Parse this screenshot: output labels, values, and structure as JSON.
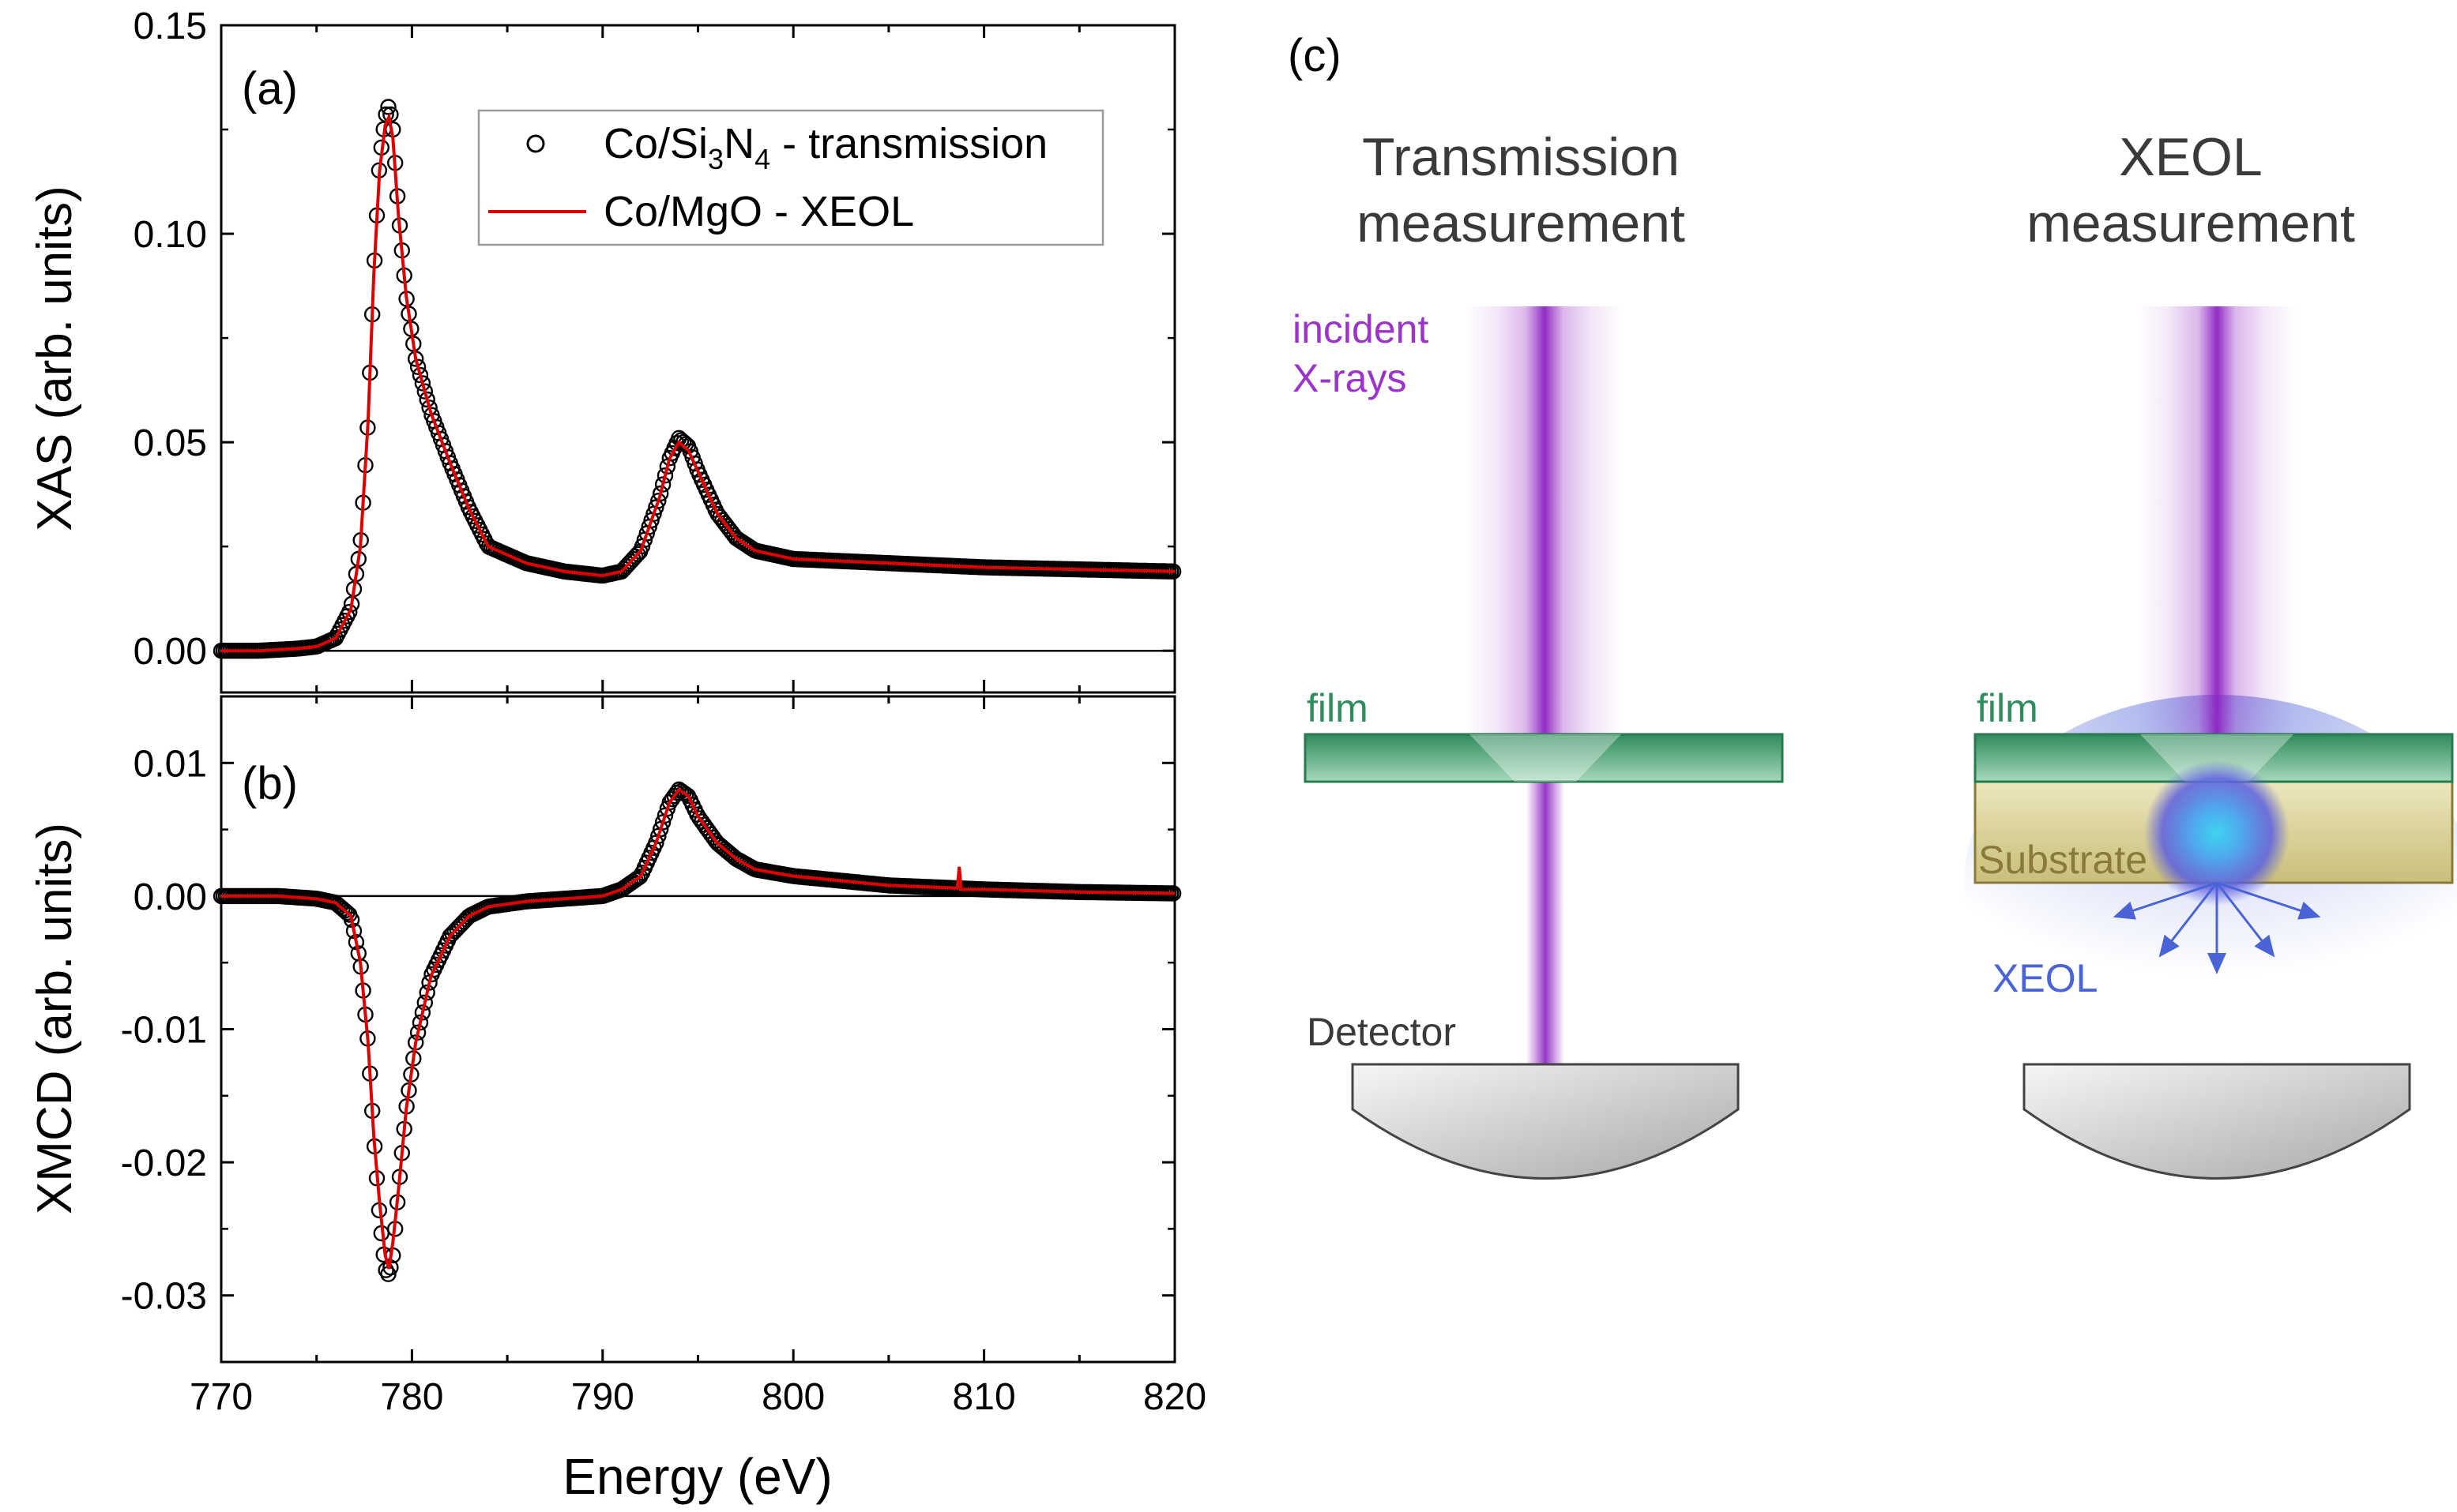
{
  "chart_data": [
    {
      "type": "line",
      "panel": "(a)",
      "ylabel": "XAS (arb. units)",
      "xlim": [
        770,
        820
      ],
      "ylim": [
        -0.01,
        0.15
      ],
      "yticks": [
        "0.00",
        "0.05",
        "0.10",
        "0.15"
      ],
      "legend": {
        "placement": "top-right",
        "entries": [
          {
            "prefix": "Co/Si",
            "sub1": "3",
            "mid": "N",
            "sub2": "4",
            "suffix": " - transmission",
            "style": "open-circle",
            "color": "#000000"
          },
          {
            "label": "Co/MgO - XEOL",
            "style": "line",
            "color": "#dd0000"
          }
        ]
      },
      "series": [
        {
          "name": "Co/Si3N4 - transmission",
          "marker": "open-circle",
          "x": [
            770,
            772,
            774,
            775,
            776,
            776.8,
            777.3,
            777.7,
            778.0,
            778.3,
            778.6,
            778.8,
            779.0,
            779.3,
            779.7,
            780.2,
            781,
            782,
            783,
            784,
            786,
            788,
            790,
            791,
            792,
            793,
            793.5,
            794,
            794.5,
            795,
            796,
            797,
            798,
            800,
            805,
            810,
            815,
            820
          ],
          "y": [
            0.0,
            0.0,
            0.0005,
            0.001,
            0.003,
            0.01,
            0.025,
            0.055,
            0.09,
            0.117,
            0.128,
            0.131,
            0.125,
            0.105,
            0.085,
            0.07,
            0.057,
            0.045,
            0.034,
            0.025,
            0.021,
            0.019,
            0.018,
            0.019,
            0.024,
            0.037,
            0.046,
            0.051,
            0.049,
            0.043,
            0.033,
            0.027,
            0.024,
            0.022,
            0.021,
            0.02,
            0.0195,
            0.019
          ]
        },
        {
          "name": "Co/MgO - XEOL",
          "color": "#dd0000",
          "x": [
            770,
            772,
            774,
            775,
            776,
            776.8,
            777.3,
            777.7,
            778.0,
            778.3,
            778.6,
            778.8,
            779.0,
            779.3,
            779.7,
            780.2,
            781,
            782,
            783,
            784,
            786,
            788,
            790,
            791,
            792,
            793,
            793.5,
            794,
            794.5,
            795,
            796,
            797,
            798,
            800,
            805,
            810,
            815,
            820
          ],
          "y": [
            0.0,
            0.0,
            0.0005,
            0.001,
            0.003,
            0.01,
            0.025,
            0.055,
            0.09,
            0.115,
            0.126,
            0.128,
            0.123,
            0.104,
            0.085,
            0.07,
            0.057,
            0.045,
            0.034,
            0.025,
            0.021,
            0.019,
            0.018,
            0.019,
            0.024,
            0.037,
            0.046,
            0.05,
            0.048,
            0.043,
            0.033,
            0.027,
            0.024,
            0.022,
            0.021,
            0.02,
            0.0195,
            0.019
          ]
        }
      ]
    },
    {
      "type": "line",
      "panel": "(b)",
      "ylabel": "XMCD (arb. units)",
      "xlabel": "Energy (eV)",
      "xlim": [
        770,
        820
      ],
      "xticks": [
        "770",
        "780",
        "790",
        "800",
        "810",
        "820"
      ],
      "ylim": [
        -0.035,
        0.015
      ],
      "yticks": [
        "-0.03",
        "-0.02",
        "-0.01",
        "0.00",
        "0.01"
      ],
      "series": [
        {
          "name": "Co/Si3N4 - transmission",
          "marker": "open-circle",
          "x": [
            770,
            773,
            775,
            776,
            776.8,
            777.3,
            777.7,
            778.0,
            778.3,
            778.6,
            778.8,
            779.0,
            779.3,
            779.7,
            780.2,
            781,
            782,
            783,
            784,
            786,
            788,
            790,
            791,
            792,
            792.8,
            793.5,
            794,
            794.5,
            795,
            796,
            797,
            798,
            800,
            805,
            810,
            815,
            820
          ],
          "y": [
            0.0,
            0.0,
            -0.0002,
            -0.0005,
            -0.0015,
            -0.005,
            -0.011,
            -0.018,
            -0.024,
            -0.028,
            -0.0285,
            -0.027,
            -0.022,
            -0.016,
            -0.011,
            -0.006,
            -0.003,
            -0.0015,
            -0.0008,
            -0.0004,
            -0.0002,
            0.0,
            0.0005,
            0.0015,
            0.004,
            0.007,
            0.008,
            0.0075,
            0.006,
            0.004,
            0.0028,
            0.002,
            0.0015,
            0.0008,
            0.0005,
            0.0003,
            0.0002
          ]
        },
        {
          "name": "Co/MgO - XEOL",
          "color": "#dd0000",
          "x": [
            770,
            773,
            775,
            776,
            776.8,
            777.3,
            777.7,
            778.0,
            778.3,
            778.6,
            778.8,
            779.0,
            779.3,
            779.7,
            780.2,
            781,
            782,
            783,
            784,
            786,
            788,
            790,
            791,
            792,
            792.8,
            793.5,
            794,
            794.5,
            795,
            796,
            797,
            798,
            800,
            805,
            808.6,
            808.7,
            808.8,
            810,
            815,
            820
          ],
          "y": [
            0.0,
            0.0,
            -0.0002,
            -0.0005,
            -0.0015,
            -0.005,
            -0.011,
            -0.018,
            -0.023,
            -0.027,
            -0.028,
            -0.026,
            -0.022,
            -0.016,
            -0.011,
            -0.006,
            -0.003,
            -0.0015,
            -0.0008,
            -0.0004,
            -0.0002,
            0.0,
            0.0005,
            0.0015,
            0.004,
            0.007,
            0.008,
            0.0075,
            0.006,
            0.004,
            0.0028,
            0.002,
            0.0015,
            0.0008,
            0.0006,
            0.0022,
            0.0005,
            0.0005,
            0.0003,
            0.0002
          ]
        }
      ]
    }
  ],
  "diagram": {
    "panel": "(c)",
    "transmission": {
      "title": [
        "Transmission",
        "measurement"
      ],
      "incident": [
        "incident",
        "X-rays"
      ],
      "film": "film",
      "detector": "Detector"
    },
    "xeol": {
      "title": [
        "XEOL",
        "measurement"
      ],
      "film": "film",
      "substrate": "Substrate",
      "emission": "XEOL"
    },
    "colors": {
      "beam": "#9b34c8",
      "film": "#2f8c5c",
      "substrate": "#d7cf9a",
      "xeol": "#4a64d8",
      "glow_core": "#3fd3ef"
    }
  }
}
